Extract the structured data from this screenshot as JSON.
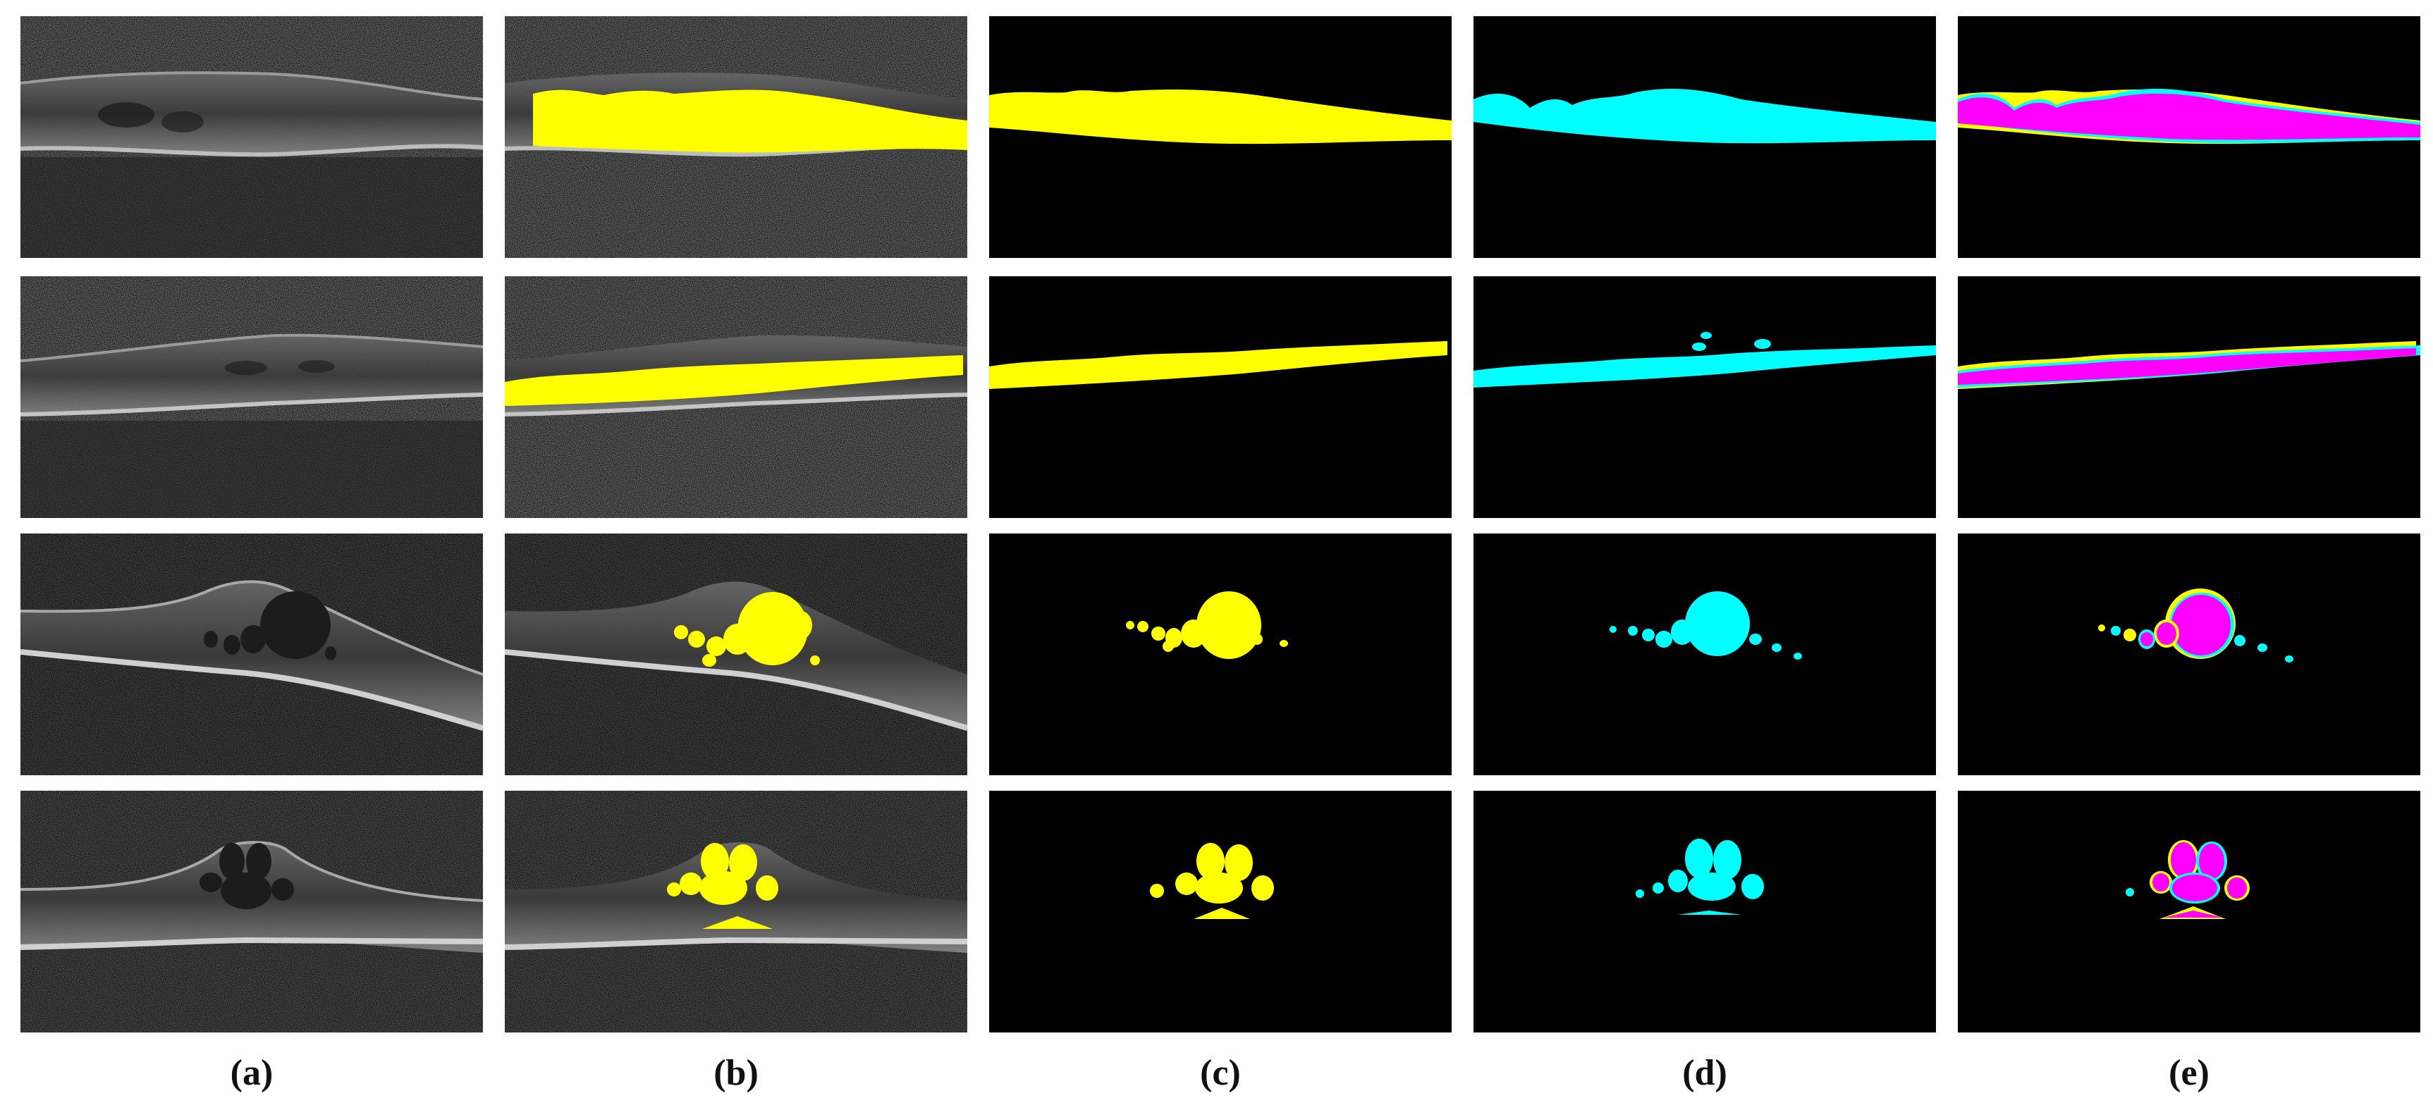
{
  "figure": {
    "column_labels": [
      "(a)",
      "(b)",
      "(c)",
      "(d)",
      "(e)"
    ],
    "colors": {
      "prediction": "#ffff00",
      "ground_truth": "#00ffff",
      "overlap": "#ff00ff",
      "background": "#000000"
    },
    "columns": [
      {
        "key": "a",
        "content": "oct-scan"
      },
      {
        "key": "b",
        "content": "oct-scan-with-prediction-overlay"
      },
      {
        "key": "c",
        "content": "prediction-mask"
      },
      {
        "key": "d",
        "content": "ground-truth-mask"
      },
      {
        "key": "e",
        "content": "overlap-comparison"
      }
    ],
    "rows": 4
  }
}
